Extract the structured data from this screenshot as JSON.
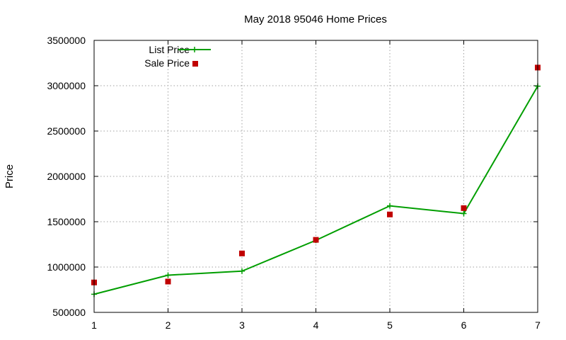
{
  "chart_data": {
    "type": "line",
    "title": "May 2018 95046 Home Prices",
    "xlabel": "",
    "ylabel": "Price",
    "x": [
      1,
      2,
      3,
      4,
      5,
      6,
      7
    ],
    "xlim": [
      1,
      7
    ],
    "ylim": [
      500000,
      3500000
    ],
    "xticks": [
      "1",
      "2",
      "3",
      "4",
      "5",
      "6",
      "7"
    ],
    "yticks": [
      "500000",
      "1000000",
      "1500000",
      "2000000",
      "2500000",
      "3000000",
      "3500000"
    ],
    "grid": true,
    "legend_position": "top-left",
    "series": [
      {
        "name": "List Price",
        "style": "line-with-plus-markers",
        "color": "#009e00",
        "values": [
          700000,
          910000,
          955000,
          1295000,
          1675000,
          1590000,
          2995000
        ]
      },
      {
        "name": "Sale Price",
        "style": "square-markers",
        "color": "#c00000",
        "values": [
          830000,
          840000,
          1150000,
          1300000,
          1580000,
          1650000,
          3200000
        ]
      }
    ]
  }
}
